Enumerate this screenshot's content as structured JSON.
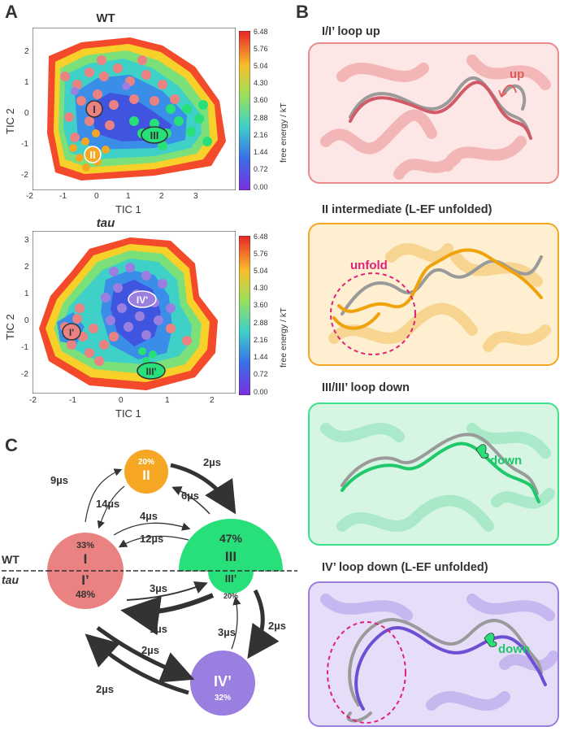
{
  "panels": {
    "A": "A",
    "B": "B",
    "C": "C"
  },
  "colors": {
    "I": "#ea8282",
    "II": "#f5a623",
    "III": "#27e07a",
    "IV": "#9a7ee0"
  },
  "heatmap_wt": {
    "title": "WT",
    "xlabel": "TIC 1",
    "ylabel": "TIC 2",
    "xticks": [
      "-2",
      "-1",
      "0",
      "1",
      "2",
      "3"
    ],
    "yticks": [
      "2",
      "1",
      "0",
      "-1",
      "-2"
    ],
    "state_labels": [
      "I",
      "II",
      "III"
    ]
  },
  "heatmap_tau": {
    "title": "tau",
    "xlabel": "TIC 1",
    "ylabel": "TIC 2",
    "xticks": [
      "-2",
      "-1",
      "0",
      "1",
      "2"
    ],
    "yticks": [
      "3",
      "2",
      "1",
      "0",
      "-1",
      "-2"
    ],
    "state_labels": [
      "I'",
      "IV'",
      "III'"
    ]
  },
  "colorbar": {
    "label": "free energy / kT",
    "ticks": [
      "6.48",
      "5.76",
      "5.04",
      "4.30",
      "3.60",
      "2.88",
      "2.16",
      "1.44",
      "0.72",
      "0.00"
    ]
  },
  "structures": [
    {
      "title": "I/I’ loop up",
      "annotation": "up"
    },
    {
      "title": "II intermediate (L-EF unfolded)",
      "annotation": "unfold"
    },
    {
      "title": "III/III’ loop down",
      "annotation": "down"
    },
    {
      "title": "IV’ loop down (L-EF unfolded)",
      "annotation": "unfold",
      "annotation2": "down"
    }
  ],
  "network": {
    "wt_label": "WT",
    "tau_label": "tau",
    "states": {
      "II": {
        "label": "II",
        "pct": "20%"
      },
      "I": {
        "label": "I",
        "pct": "33%"
      },
      "I_prime": {
        "label": "I’",
        "pct": "48%"
      },
      "III": {
        "label": "III",
        "pct": "47%"
      },
      "III_prime": {
        "label": "III’",
        "pct": "20%"
      },
      "IV_prime": {
        "label": "IV’",
        "pct": "32%"
      }
    },
    "rates": {
      "I_to_II": "9µs",
      "II_to_I": "14µs",
      "II_to_III": "2µs",
      "III_to_II": "6µs",
      "I_to_III": "4µs",
      "III_to_I": "12µs",
      "Ip_to_IIIp": "3µs",
      "IIIp_to_Ip": "1µs",
      "IIIp_to_IVp": "2µs",
      "IVp_to_IIIp": "3µs",
      "Ip_to_IVp": "2µs",
      "IVp_to_Ip": "2µs"
    }
  }
}
